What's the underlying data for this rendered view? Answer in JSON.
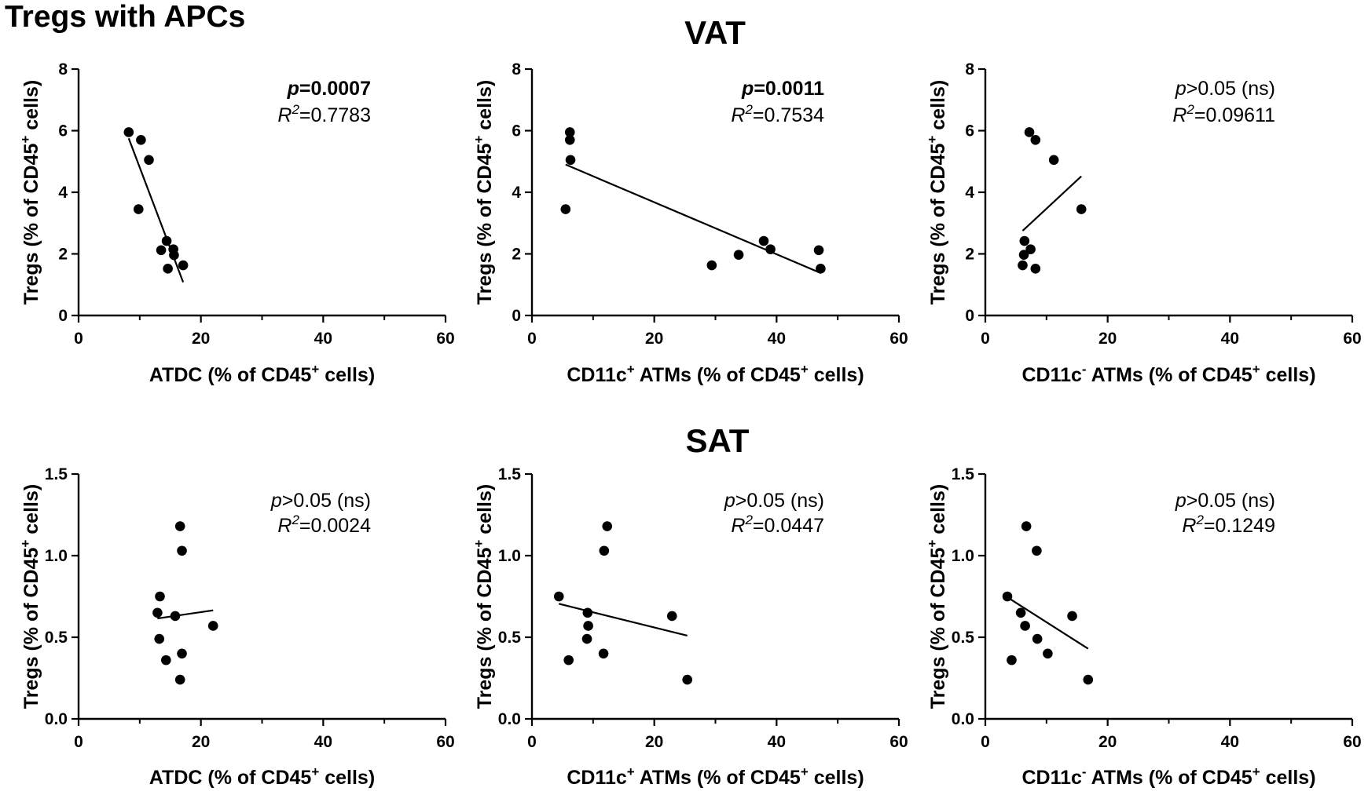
{
  "figure_title": "Tregs with APCs",
  "section_titles": [
    "VAT",
    "SAT"
  ],
  "chart_data": [
    {
      "type": "scatter",
      "section": "VAT",
      "xlabel": {
        "main": "ATDC (% of CD45",
        "sup": "+",
        "tail": " cells)"
      },
      "ylabel": {
        "main": "Tregs (% of CD45",
        "sup": "+",
        "tail": " cells)"
      },
      "xlim": [
        0,
        60
      ],
      "ylim": [
        0,
        8
      ],
      "xticks": [
        "0",
        "20",
        "40",
        "60"
      ],
      "yticks": [
        "0",
        "2",
        "4",
        "6",
        "8"
      ],
      "points": [
        [
          8.2,
          5.95
        ],
        [
          10.2,
          5.7
        ],
        [
          11.5,
          5.05
        ],
        [
          9.8,
          3.45
        ],
        [
          14.4,
          2.42
        ],
        [
          13.5,
          2.12
        ],
        [
          15.5,
          2.15
        ],
        [
          15.6,
          1.96
        ],
        [
          17.1,
          1.63
        ],
        [
          14.6,
          1.52
        ]
      ],
      "fit": [
        [
          8.2,
          5.75
        ],
        [
          17.1,
          1.08
        ]
      ],
      "p_label": "p",
      "p_value": "=0.0007",
      "p_bold": true,
      "r_label": "R",
      "r_exp": "2",
      "r_value": "=0.7783"
    },
    {
      "type": "scatter",
      "section": "VAT",
      "xlabel": {
        "main": "CD11c",
        "sup": "+",
        "mid": " ATMs (% of CD45",
        "sup2": "+",
        "tail": " cells)"
      },
      "ylabel": {
        "main": "Tregs (% of CD45",
        "sup": "+",
        "tail": " cells)"
      },
      "xlim": [
        0,
        60
      ],
      "ylim": [
        0,
        8
      ],
      "xticks": [
        "0",
        "20",
        "40",
        "60"
      ],
      "yticks": [
        "0",
        "2",
        "4",
        "6",
        "8"
      ],
      "points": [
        [
          6.2,
          5.95
        ],
        [
          6.2,
          5.7
        ],
        [
          6.3,
          5.05
        ],
        [
          5.5,
          3.45
        ],
        [
          29.4,
          1.63
        ],
        [
          33.8,
          1.97
        ],
        [
          37.9,
          2.42
        ],
        [
          39.0,
          2.15
        ],
        [
          46.9,
          2.12
        ],
        [
          47.2,
          1.52
        ]
      ],
      "fit": [
        [
          5.5,
          4.9
        ],
        [
          47.2,
          1.38
        ]
      ],
      "p_label": "p",
      "p_value": "=0.0011",
      "p_bold": true,
      "r_label": "R",
      "r_exp": "2",
      "r_value": "=0.7534"
    },
    {
      "type": "scatter",
      "section": "VAT",
      "xlabel": {
        "main": "CD11c",
        "sup": "-",
        "mid": " ATMs (% of CD45",
        "sup2": "+",
        "tail": " cells)"
      },
      "ylabel": {
        "main": "Tregs (% of CD45",
        "sup": "+",
        "tail": " cells)"
      },
      "xlim": [
        0,
        60
      ],
      "ylim": [
        0,
        8
      ],
      "xticks": [
        "0",
        "20",
        "40",
        "60"
      ],
      "yticks": [
        "0",
        "2",
        "4",
        "6",
        "8"
      ],
      "points": [
        [
          7.2,
          5.95
        ],
        [
          8.2,
          5.7
        ],
        [
          11.2,
          5.05
        ],
        [
          15.7,
          3.45
        ],
        [
          6.4,
          2.42
        ],
        [
          6.3,
          1.97
        ],
        [
          7.4,
          2.15
        ],
        [
          6.1,
          1.63
        ],
        [
          8.2,
          1.52
        ]
      ],
      "fit": [
        [
          6.1,
          2.75
        ],
        [
          15.7,
          4.52
        ]
      ],
      "p_label": "p",
      "p_value": ">0.05 (ns)",
      "p_bold": false,
      "r_label": "R",
      "r_exp": "2",
      "r_value": "=0.09611"
    },
    {
      "type": "scatter",
      "section": "SAT",
      "xlabel": {
        "main": "ATDC (% of CD45",
        "sup": "+",
        "tail": " cells)"
      },
      "ylabel": {
        "main": "Tregs (% of CD45",
        "sup": "+",
        "tail": " cells)"
      },
      "xlim": [
        0,
        60
      ],
      "ylim": [
        0,
        1.5
      ],
      "xticks": [
        "0",
        "20",
        "40",
        "60"
      ],
      "yticks": [
        "0.0",
        "0.5",
        "1.0",
        "1.5"
      ],
      "points": [
        [
          16.6,
          1.18
        ],
        [
          16.9,
          1.03
        ],
        [
          13.3,
          0.75
        ],
        [
          12.9,
          0.65
        ],
        [
          15.8,
          0.63
        ],
        [
          22.0,
          0.57
        ],
        [
          13.2,
          0.49
        ],
        [
          16.9,
          0.4
        ],
        [
          14.3,
          0.36
        ],
        [
          16.6,
          0.24
        ]
      ],
      "fit": [
        [
          12.9,
          0.615
        ],
        [
          22.0,
          0.665
        ]
      ],
      "p_label": "p",
      "p_value": ">0.05 (ns)",
      "p_bold": false,
      "r_label": "R",
      "r_exp": "2",
      "r_value": "=0.0024"
    },
    {
      "type": "scatter",
      "section": "SAT",
      "xlabel": {
        "main": "CD11c",
        "sup": "+",
        "mid": " ATMs (% of CD45",
        "sup2": "+",
        "tail": " cells)"
      },
      "ylabel": {
        "main": "Tregs (% of CD45",
        "sup": "+",
        "tail": " cells)"
      },
      "xlim": [
        0,
        60
      ],
      "ylim": [
        0,
        1.5
      ],
      "xticks": [
        "0",
        "20",
        "40",
        "60"
      ],
      "yticks": [
        "0.0",
        "0.5",
        "1.0",
        "1.5"
      ],
      "points": [
        [
          12.3,
          1.18
        ],
        [
          11.8,
          1.03
        ],
        [
          4.4,
          0.75
        ],
        [
          9.1,
          0.65
        ],
        [
          22.9,
          0.63
        ],
        [
          9.2,
          0.57
        ],
        [
          9.0,
          0.49
        ],
        [
          11.7,
          0.4
        ],
        [
          6.0,
          0.36
        ],
        [
          25.4,
          0.24
        ]
      ],
      "fit": [
        [
          4.4,
          0.705
        ],
        [
          25.4,
          0.51
        ]
      ],
      "p_label": "p",
      "p_value": ">0.05 (ns)",
      "p_bold": false,
      "r_label": "R",
      "r_exp": "2",
      "r_value": "=0.0447"
    },
    {
      "type": "scatter",
      "section": "SAT",
      "xlabel": {
        "main": "CD11c",
        "sup": "-",
        "mid": " ATMs (% of CD45",
        "sup2": "+",
        "tail": " cells)"
      },
      "ylabel": {
        "main": "Tregs (% of CD45",
        "sup": "+",
        "tail": " cells)"
      },
      "xlim": [
        0,
        60
      ],
      "ylim": [
        0,
        1.5
      ],
      "xticks": [
        "0",
        "20",
        "40",
        "60"
      ],
      "yticks": [
        "0.0",
        "0.5",
        "1.0",
        "1.5"
      ],
      "points": [
        [
          6.7,
          1.18
        ],
        [
          8.4,
          1.03
        ],
        [
          3.6,
          0.75
        ],
        [
          5.8,
          0.65
        ],
        [
          14.2,
          0.63
        ],
        [
          6.5,
          0.57
        ],
        [
          8.5,
          0.49
        ],
        [
          10.2,
          0.4
        ],
        [
          4.3,
          0.36
        ],
        [
          16.8,
          0.24
        ]
      ],
      "fit": [
        [
          3.6,
          0.745
        ],
        [
          16.8,
          0.43
        ]
      ],
      "p_label": "p",
      "p_value": ">0.05 (ns)",
      "p_bold": false,
      "r_label": "R",
      "r_exp": "2",
      "r_value": "=0.1249"
    }
  ]
}
